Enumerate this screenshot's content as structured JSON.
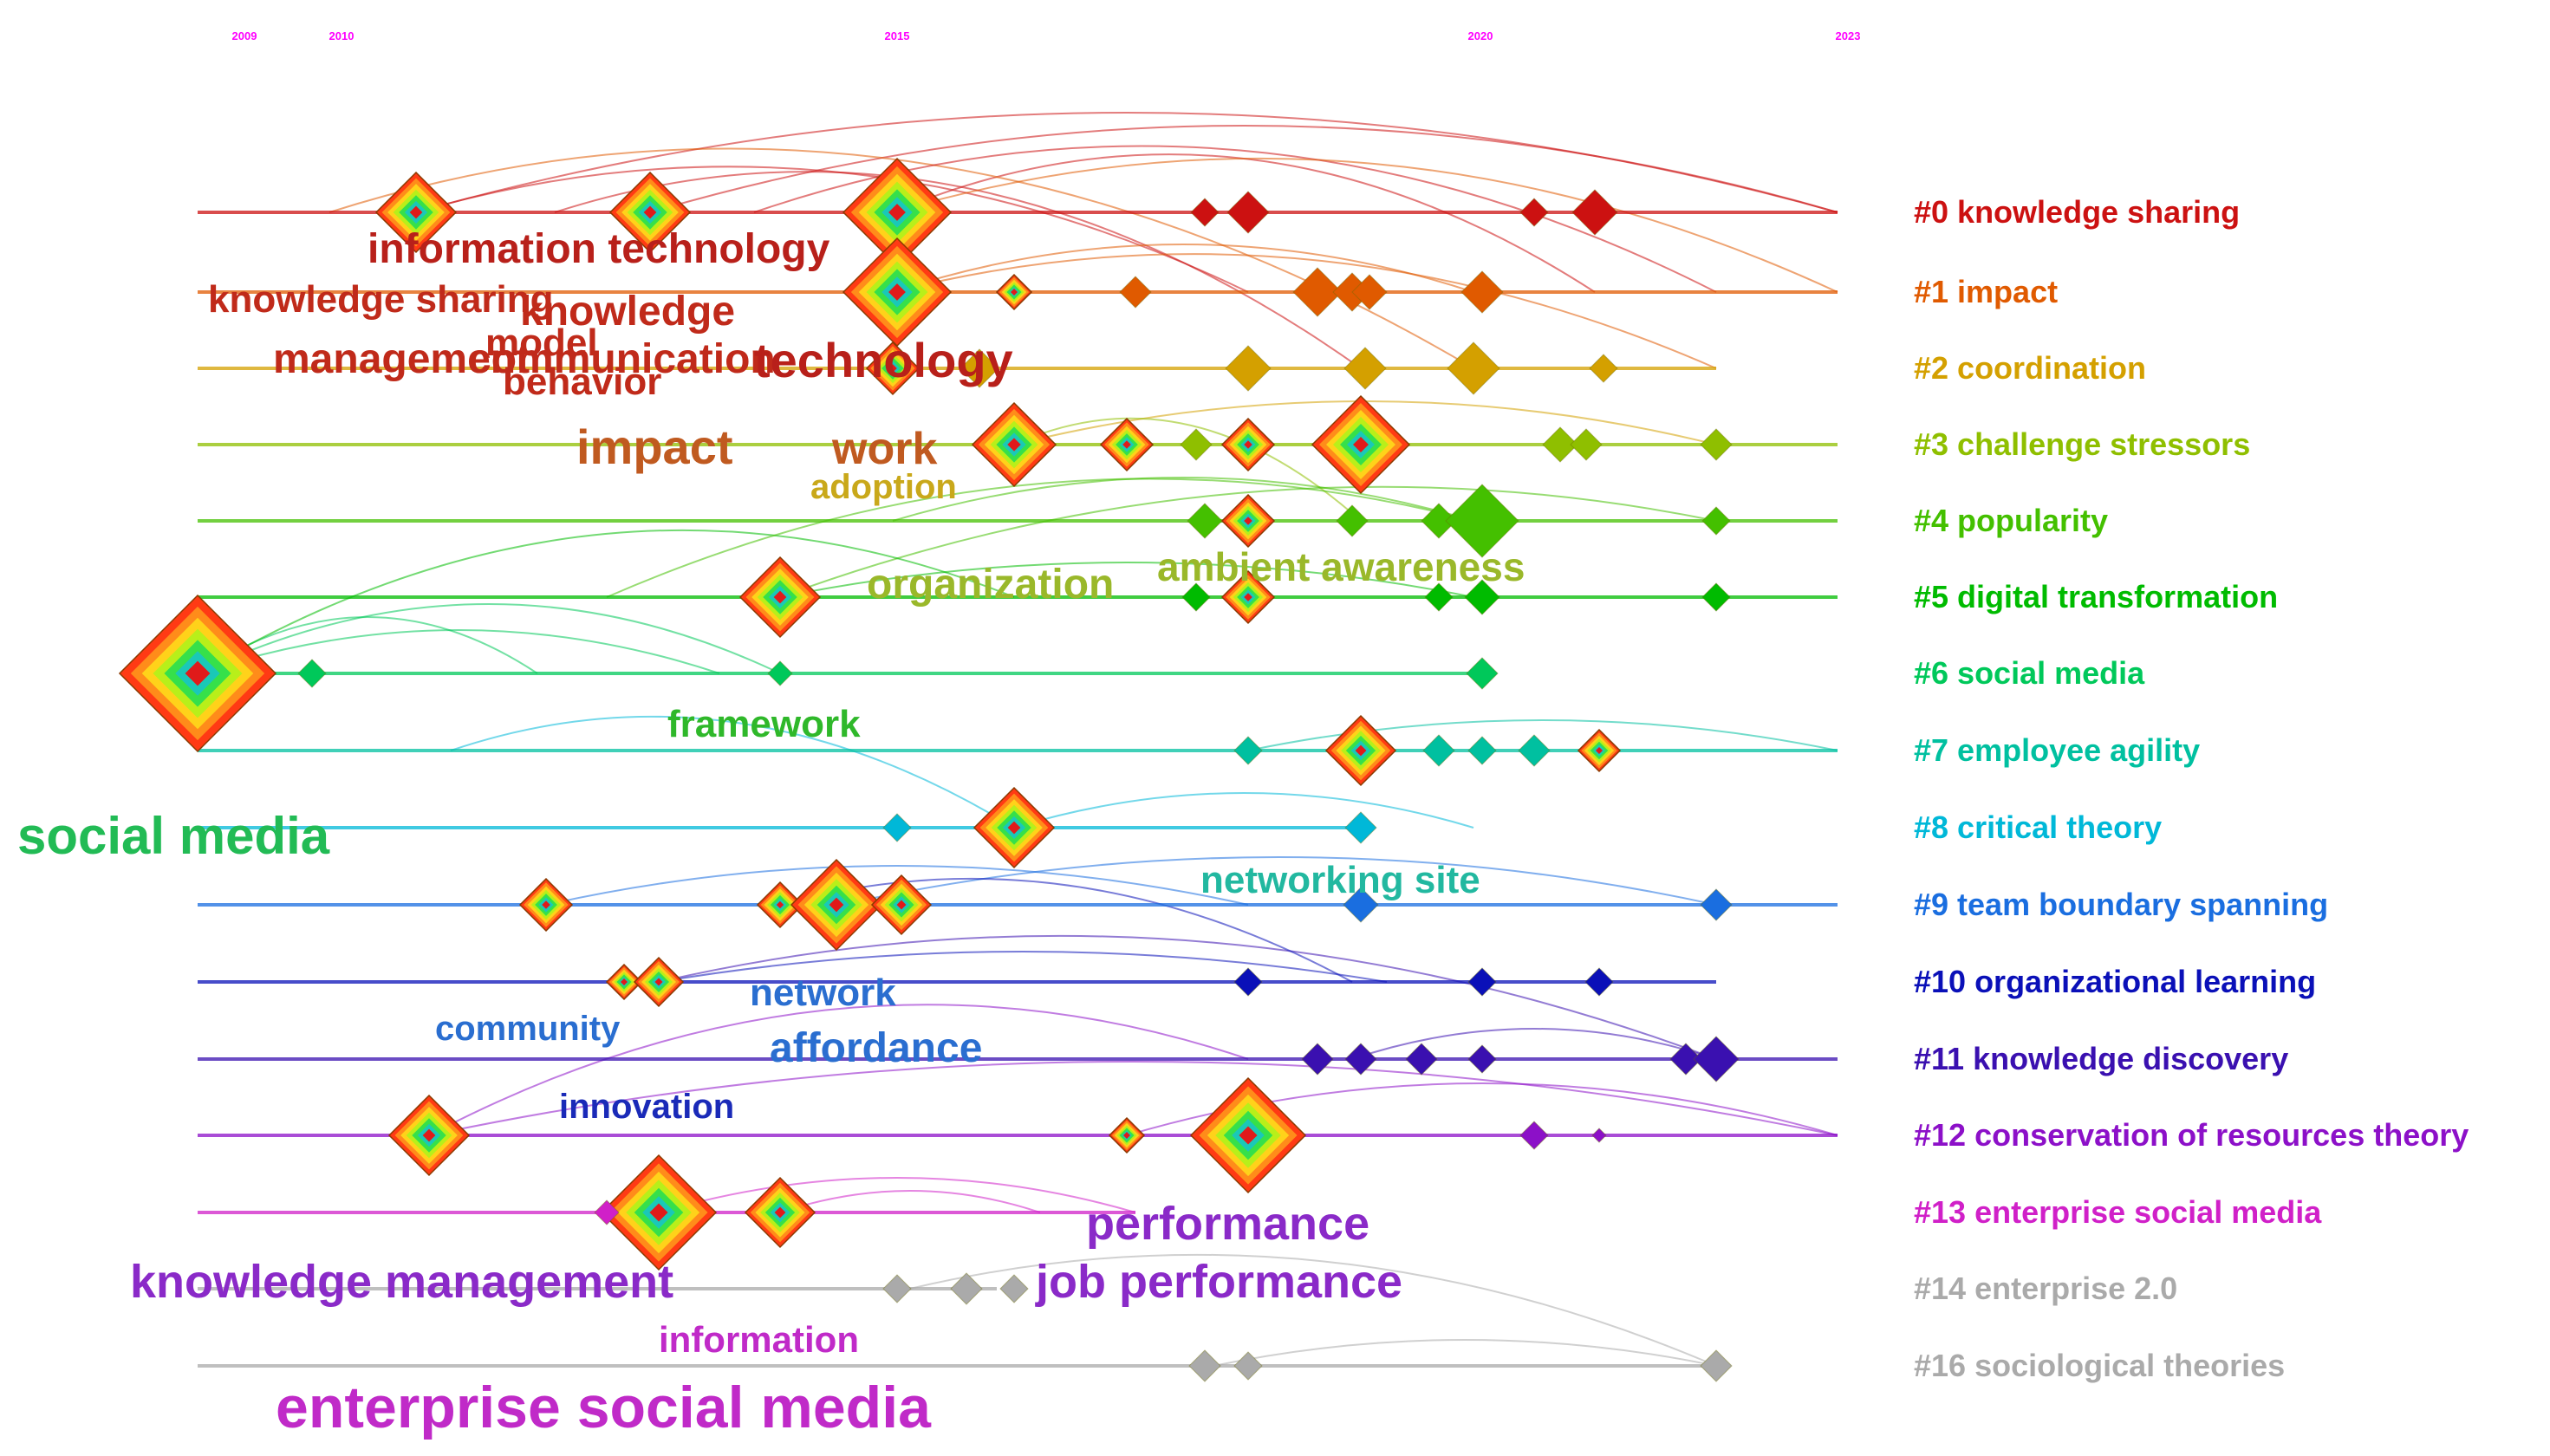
{
  "timeline": {
    "years": [
      "2009",
      "2010",
      "2015",
      "2020",
      "2023"
    ],
    "year_color": "#ff00ff"
  },
  "clusters": [
    {
      "label": "#0 knowledge sharing",
      "color": "#cc1111"
    },
    {
      "label": "#1 impact",
      "color": "#e05a00"
    },
    {
      "label": "#2 coordination",
      "color": "#d4a000"
    },
    {
      "label": "#3 challenge stressors",
      "color": "#8fbf00"
    },
    {
      "label": "#4 popularity",
      "color": "#44c000"
    },
    {
      "label": "#5 digital transformation",
      "color": "#00bb00"
    },
    {
      "label": "#6 social media",
      "color": "#00c85a"
    },
    {
      "label": "#7 employee agility",
      "color": "#00c0a0"
    },
    {
      "label": "#8 critical theory",
      "color": "#00b8d8"
    },
    {
      "label": "#9 team boundary spanning",
      "color": "#1a6ee0"
    },
    {
      "label": "#10 organizational learning",
      "color": "#0a10b8"
    },
    {
      "label": "#11 knowledge discovery",
      "color": "#3a10b0"
    },
    {
      "label": "#12 conservation of resources theory",
      "color": "#8c10c8"
    },
    {
      "label": "#13 enterprise social media",
      "color": "#d020c8"
    },
    {
      "label": "#14 enterprise 2.0",
      "color": "#aaaaaa"
    },
    {
      "label": "#16 sociological theories",
      "color": "#aaaaaa"
    }
  ],
  "keywords": [
    {
      "text": "information technology",
      "color": "#b8201a"
    },
    {
      "text": "knowledge sharing",
      "color": "#c02a1a"
    },
    {
      "text": "knowledge",
      "color": "#c02a1a"
    },
    {
      "text": "model",
      "color": "#c02a1a"
    },
    {
      "text": "management",
      "color": "#c02a1a"
    },
    {
      "text": "communication",
      "color": "#c02a1a"
    },
    {
      "text": "behavior",
      "color": "#c02a1a"
    },
    {
      "text": "technology",
      "color": "#b8201a"
    },
    {
      "text": "impact",
      "color": "#c05a20"
    },
    {
      "text": "work",
      "color": "#c05a20"
    },
    {
      "text": "adoption",
      "color": "#c9a81a"
    },
    {
      "text": "organization",
      "color": "#9ab82a"
    },
    {
      "text": "ambient awareness",
      "color": "#9ab82a"
    },
    {
      "text": "framework",
      "color": "#2fb82a"
    },
    {
      "text": "social media",
      "color": "#22bb55"
    },
    {
      "text": "networking site",
      "color": "#22b8a0"
    },
    {
      "text": "network",
      "color": "#2a6ed0"
    },
    {
      "text": "community",
      "color": "#2a6ed0"
    },
    {
      "text": "affordance",
      "color": "#2a6ed0"
    },
    {
      "text": "innovation",
      "color": "#1a2ab8"
    },
    {
      "text": "performance",
      "color": "#8a2ac8"
    },
    {
      "text": "job performance",
      "color": "#8a2ac8"
    },
    {
      "text": "knowledge management",
      "color": "#8a2ac8"
    },
    {
      "text": "information",
      "color": "#c02ac8"
    },
    {
      "text": "enterprise social media",
      "color": "#c02ac8"
    }
  ]
}
